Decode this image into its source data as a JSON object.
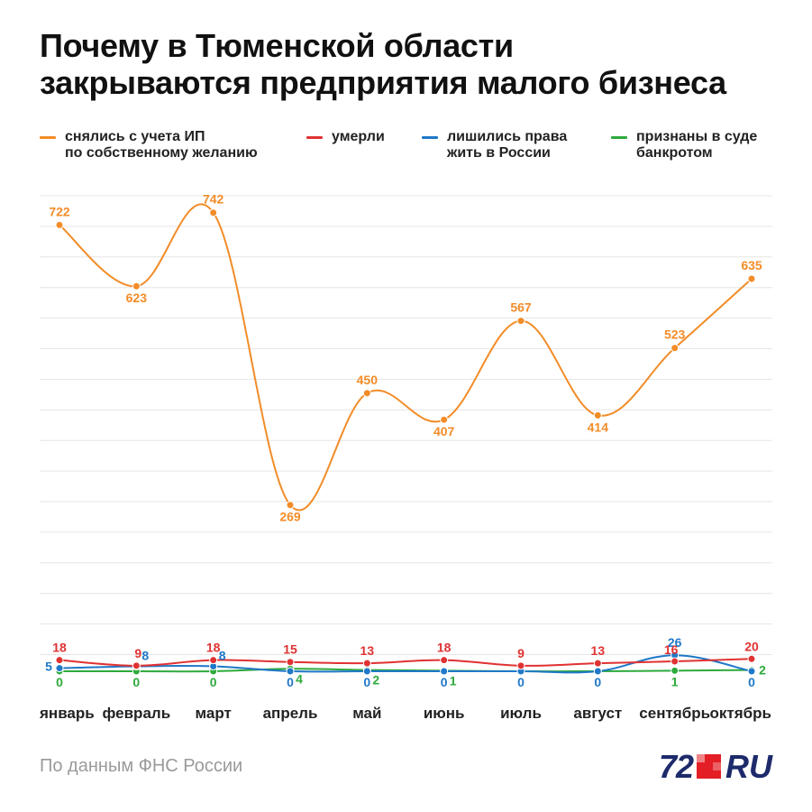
{
  "title_lines": [
    "Почему в Тюменской области",
    "закрываются предприятия малого бизнеса"
  ],
  "source": "По данным ФНС России",
  "logo": {
    "number": "72",
    "suffix": "RU",
    "color_number": "#1d2a6b",
    "color_square": "#e31e24"
  },
  "legend": [
    {
      "lines": [
        "снялись с учета ИП",
        "по собственному желанию"
      ],
      "color": "#f28c28"
    },
    {
      "lines": [
        "умерли"
      ],
      "color": "#e03232"
    },
    {
      "lines": [
        "лишились права",
        "жить в России"
      ],
      "color": "#1f78c8"
    },
    {
      "lines": [
        "признаны в суде",
        "банкротом"
      ],
      "color": "#2eaa3c"
    }
  ],
  "chart_data": {
    "type": "line",
    "categories": [
      "январь",
      "февраль",
      "март",
      "апрель",
      "май",
      "июнь",
      "июль",
      "август",
      "сентябрь",
      "октябрь"
    ],
    "ylim": [
      0,
      800
    ],
    "grid": true,
    "legend_position": "top",
    "series": [
      {
        "name": "снялись с учета ИП по собственному желанию",
        "color": "#f28c28",
        "values": [
          722,
          623,
          742,
          269,
          450,
          407,
          567,
          414,
          523,
          635
        ]
      },
      {
        "name": "умерли",
        "color": "#e03232",
        "values": [
          18,
          9,
          18,
          15,
          13,
          18,
          9,
          13,
          16,
          20
        ]
      },
      {
        "name": "лишились права жить в России",
        "color": "#1f78c8",
        "values": [
          5,
          8,
          8,
          0,
          0,
          0,
          0,
          0,
          26,
          0
        ]
      },
      {
        "name": "признаны в суде банкротом",
        "color": "#2eaa3c",
        "values": [
          0,
          0,
          0,
          4,
          2,
          1,
          0,
          0,
          1,
          2
        ]
      }
    ]
  }
}
